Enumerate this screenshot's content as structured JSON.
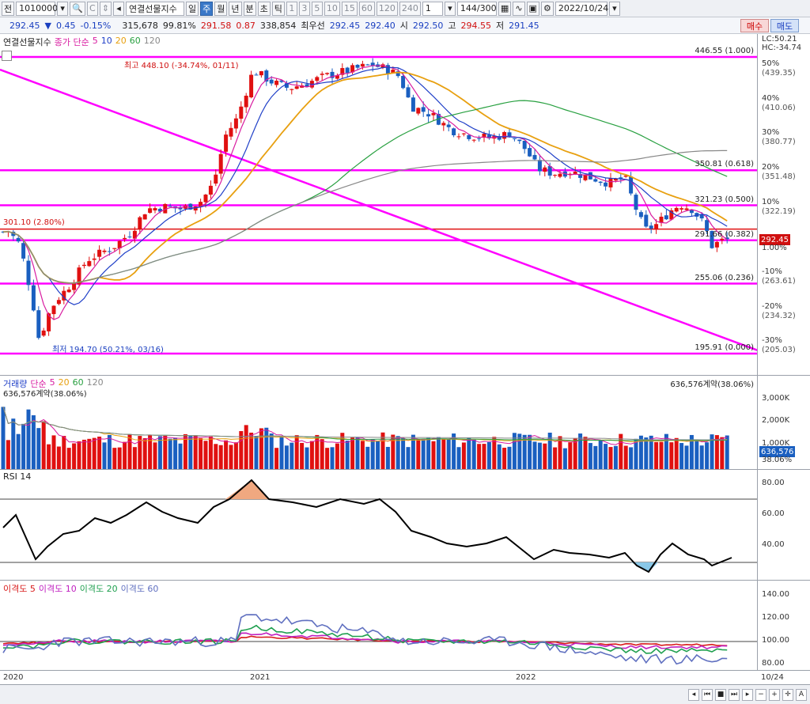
{
  "toolbar": {
    "code_prefix": "전",
    "code": "10100000",
    "name": "연결선물지수",
    "periods": [
      "일",
      "주",
      "월",
      "년",
      "분",
      "초",
      "틱"
    ],
    "selected_period": "주",
    "intervals": [
      "1",
      "3",
      "5",
      "10",
      "15",
      "60",
      "120",
      "240"
    ],
    "count_value": "1",
    "page_value": "144",
    "page_total": "/300",
    "date": "2022/10/24",
    "icons": [
      "search-icon",
      "compare-icon",
      "stepper-icon",
      "save-icon",
      "settings-icon"
    ]
  },
  "quote": {
    "price": "292.45",
    "price_dir": "▼",
    "change": "0.45",
    "change_pct": "-0.15%",
    "volume": "315,678",
    "vol_pct": "99.81%",
    "bid_price": "291.58",
    "bid_change": "0.87",
    "open_interest": "338,854",
    "best_label": "최우선",
    "best_ask": "292.45",
    "best_bid": "292.40",
    "open_label": "시",
    "open": "292.50",
    "high_label": "고",
    "high": "294.55",
    "low_label": "저",
    "low": "291.45",
    "buy_label": "매수",
    "sell_label": "매도"
  },
  "price_pane": {
    "legend_name": "연결선물지수",
    "legend_series": "종가 단순",
    "ma_labels": [
      "5",
      "10",
      "20",
      "60",
      "120"
    ],
    "ma_colors": [
      "#d81ba0",
      "#2040c8",
      "#e8a010",
      "#28a040",
      "#888888"
    ],
    "corner_lc": "LC:50.21",
    "corner_hc": "HC:-34.74",
    "high_note": "최고 448.10 (-34.74%, 01/11)",
    "low_note": "최저 194.70 (50.21%, 03/16)",
    "ref_note": "301.10 (2.80%)",
    "current_tag": "292.45",
    "current_pct": "1.00%",
    "fib_levels": [
      {
        "value": 446.55,
        "label": "446.55 (1.000)"
      },
      {
        "value": 350.81,
        "label": "350.81 (0.618)"
      },
      {
        "value": 321.23,
        "label": "321.23 (0.500)"
      },
      {
        "value": 291.66,
        "label": "291.66 (0.382)"
      },
      {
        "value": 255.06,
        "label": "255.06 (0.236)"
      },
      {
        "value": 195.91,
        "label": "195.91 (0.000)"
      }
    ],
    "yaxis_labels": [
      {
        "pct": "50%",
        "val": "(439.35)"
      },
      {
        "pct": "40%",
        "val": "(410.06)"
      },
      {
        "pct": "30%",
        "val": "(380.77)"
      },
      {
        "pct": "20%",
        "val": "(351.48)"
      },
      {
        "pct": "10%",
        "val": "(322.19)"
      },
      {
        "pct": "-10%",
        "val": "(263.61)"
      },
      {
        "pct": "-20%",
        "val": "(234.32)"
      },
      {
        "pct": "-30%",
        "val": "(205.03)"
      }
    ]
  },
  "volume_pane": {
    "legend_name": "거래량",
    "legend_series": "단순",
    "ma_labels": [
      "5",
      "20",
      "60",
      "120"
    ],
    "sub_legend": "636,576계약(38.06%)",
    "right_note": "636,576계약(38.06%)",
    "yaxis_labels": [
      "3,000K",
      "2,000K",
      "1,000K"
    ],
    "current_tag": "636,576",
    "current_pct": "38.06%"
  },
  "rsi_pane": {
    "legend": "RSI 14",
    "yaxis_labels": [
      "80.00",
      "60.00",
      "40.00"
    ]
  },
  "disparity_pane": {
    "legend": [
      "이격도 5",
      "이격도 10",
      "이격도 20",
      "이격도 60"
    ],
    "colors": [
      "#d81b1b",
      "#c020c0",
      "#20a050",
      "#6070c0"
    ],
    "yaxis_labels": [
      "140.00",
      "120.00",
      "100.00",
      "80.00"
    ]
  },
  "xaxis": {
    "labels": [
      "2020",
      "2021",
      "2022"
    ],
    "right_label": "10/24"
  }
}
